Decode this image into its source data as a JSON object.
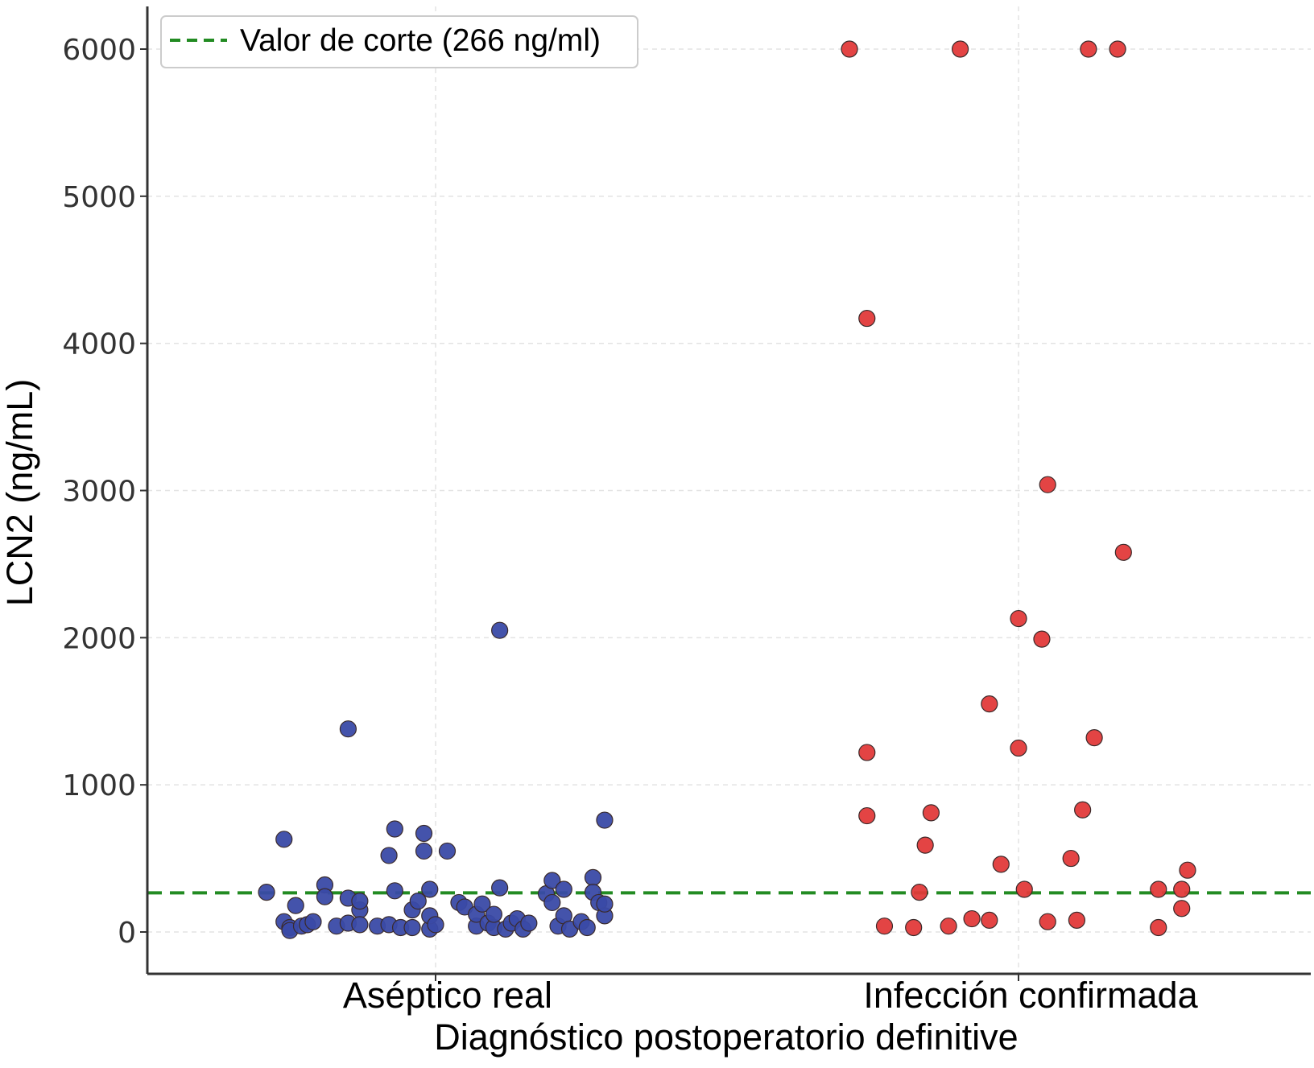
{
  "chart_data": {
    "type": "scatter",
    "xlabel": "Diagnóstico postoperatorio definitive",
    "ylabel": "LCN2 (ng/mL)",
    "categories": [
      "Aséptico real",
      "Infección confirmada"
    ],
    "ylim": [
      -300,
      6300
    ],
    "yticks": [
      0,
      1000,
      2000,
      3000,
      4000,
      5000,
      6000
    ],
    "grid": true,
    "legend_position": "top-left",
    "cutoff": {
      "label": "Valor de corte (266 ng/ml)",
      "value": 266,
      "color": "#228b22"
    },
    "series": [
      {
        "category": "Aséptico real",
        "color": "#3a4aa6",
        "points": [
          {
            "x": -0.29,
            "y": 270
          },
          {
            "x": -0.26,
            "y": 630
          },
          {
            "x": -0.26,
            "y": 70
          },
          {
            "x": -0.25,
            "y": 30
          },
          {
            "x": -0.25,
            "y": 10
          },
          {
            "x": -0.24,
            "y": 180
          },
          {
            "x": -0.23,
            "y": 40
          },
          {
            "x": -0.22,
            "y": 50
          },
          {
            "x": -0.21,
            "y": 70
          },
          {
            "x": -0.19,
            "y": 320
          },
          {
            "x": -0.19,
            "y": 240
          },
          {
            "x": -0.17,
            "y": 40
          },
          {
            "x": -0.15,
            "y": 1380
          },
          {
            "x": -0.15,
            "y": 230
          },
          {
            "x": -0.15,
            "y": 60
          },
          {
            "x": -0.13,
            "y": 150
          },
          {
            "x": -0.13,
            "y": 210
          },
          {
            "x": -0.13,
            "y": 50
          },
          {
            "x": -0.1,
            "y": 40
          },
          {
            "x": -0.08,
            "y": 50
          },
          {
            "x": -0.08,
            "y": 520
          },
          {
            "x": -0.07,
            "y": 700
          },
          {
            "x": -0.07,
            "y": 280
          },
          {
            "x": -0.06,
            "y": 30
          },
          {
            "x": -0.04,
            "y": 150
          },
          {
            "x": -0.04,
            "y": 30
          },
          {
            "x": -0.03,
            "y": 210
          },
          {
            "x": -0.02,
            "y": 670
          },
          {
            "x": -0.02,
            "y": 550
          },
          {
            "x": -0.01,
            "y": 20
          },
          {
            "x": -0.01,
            "y": 290
          },
          {
            "x": -0.01,
            "y": 110
          },
          {
            "x": 0.0,
            "y": 50
          },
          {
            "x": 0.02,
            "y": 550
          },
          {
            "x": 0.04,
            "y": 200
          },
          {
            "x": 0.05,
            "y": 170
          },
          {
            "x": 0.07,
            "y": 40
          },
          {
            "x": 0.07,
            "y": 120
          },
          {
            "x": 0.08,
            "y": 190
          },
          {
            "x": 0.09,
            "y": 60
          },
          {
            "x": 0.1,
            "y": 30
          },
          {
            "x": 0.1,
            "y": 120
          },
          {
            "x": 0.11,
            "y": 2050
          },
          {
            "x": 0.11,
            "y": 300
          },
          {
            "x": 0.12,
            "y": 20
          },
          {
            "x": 0.13,
            "y": 60
          },
          {
            "x": 0.14,
            "y": 90
          },
          {
            "x": 0.15,
            "y": 20
          },
          {
            "x": 0.16,
            "y": 60
          },
          {
            "x": 0.19,
            "y": 260
          },
          {
            "x": 0.2,
            "y": 350
          },
          {
            "x": 0.2,
            "y": 200
          },
          {
            "x": 0.21,
            "y": 40
          },
          {
            "x": 0.22,
            "y": 290
          },
          {
            "x": 0.22,
            "y": 110
          },
          {
            "x": 0.23,
            "y": 20
          },
          {
            "x": 0.25,
            "y": 70
          },
          {
            "x": 0.26,
            "y": 30
          },
          {
            "x": 0.27,
            "y": 370
          },
          {
            "x": 0.27,
            "y": 270
          },
          {
            "x": 0.28,
            "y": 200
          },
          {
            "x": 0.29,
            "y": 760
          },
          {
            "x": 0.29,
            "y": 110
          },
          {
            "x": 0.29,
            "y": 190
          }
        ]
      },
      {
        "category": "Infección confirmada",
        "color": "#e23a3a",
        "points": [
          {
            "x": -0.29,
            "y": 6000
          },
          {
            "x": -0.26,
            "y": 4170
          },
          {
            "x": -0.26,
            "y": 1220
          },
          {
            "x": -0.26,
            "y": 790
          },
          {
            "x": -0.23,
            "y": 40
          },
          {
            "x": -0.18,
            "y": 30
          },
          {
            "x": -0.17,
            "y": 270
          },
          {
            "x": -0.16,
            "y": 590
          },
          {
            "x": -0.15,
            "y": 810
          },
          {
            "x": -0.12,
            "y": 40
          },
          {
            "x": -0.1,
            "y": 6000
          },
          {
            "x": -0.08,
            "y": 90
          },
          {
            "x": -0.05,
            "y": 1550
          },
          {
            "x": -0.05,
            "y": 80
          },
          {
            "x": -0.03,
            "y": 460
          },
          {
            "x": 0.0,
            "y": 2130
          },
          {
            "x": 0.0,
            "y": 1250
          },
          {
            "x": 0.01,
            "y": 290
          },
          {
            "x": 0.04,
            "y": 1990
          },
          {
            "x": 0.05,
            "y": 3040
          },
          {
            "x": 0.05,
            "y": 70
          },
          {
            "x": 0.09,
            "y": 500
          },
          {
            "x": 0.1,
            "y": 80
          },
          {
            "x": 0.11,
            "y": 830
          },
          {
            "x": 0.12,
            "y": 6000
          },
          {
            "x": 0.13,
            "y": 1320
          },
          {
            "x": 0.17,
            "y": 6000
          },
          {
            "x": 0.18,
            "y": 2580
          },
          {
            "x": 0.24,
            "y": 290
          },
          {
            "x": 0.24,
            "y": 30
          },
          {
            "x": 0.28,
            "y": 290
          },
          {
            "x": 0.28,
            "y": 160
          },
          {
            "x": 0.29,
            "y": 420
          }
        ]
      }
    ]
  }
}
